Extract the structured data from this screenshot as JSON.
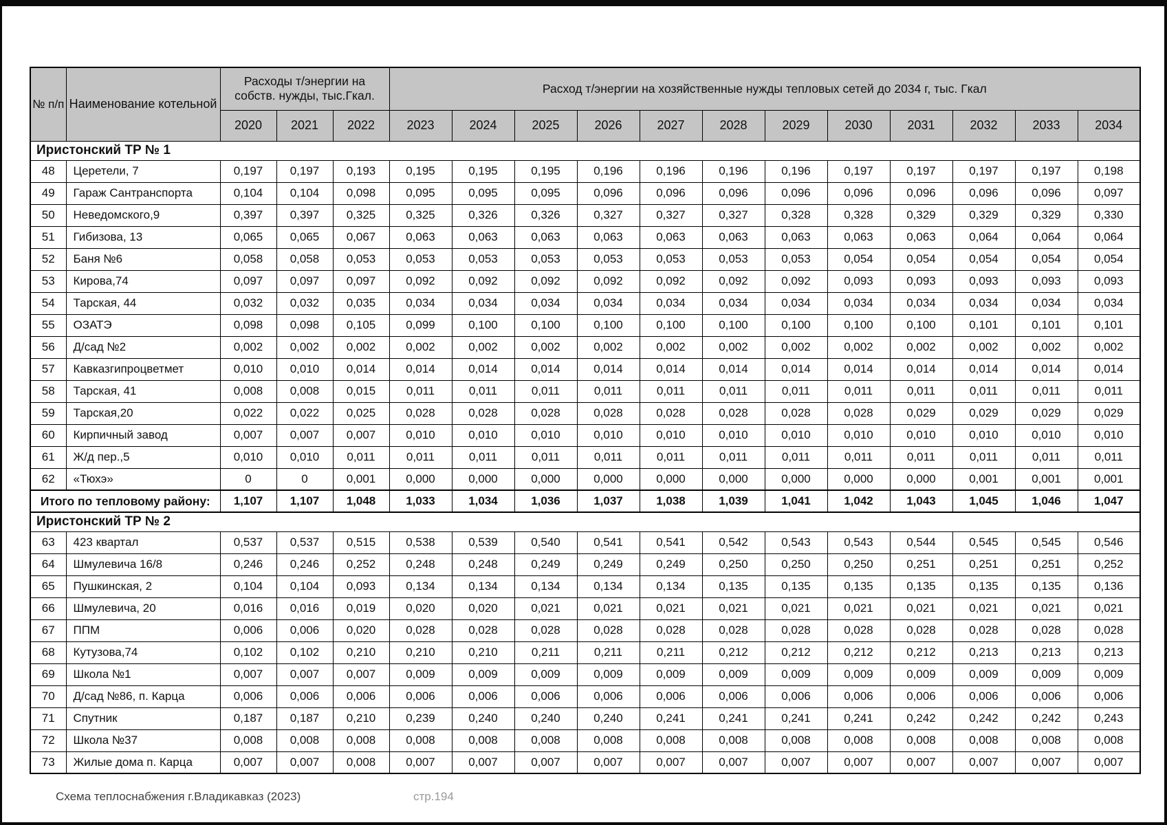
{
  "page": {
    "footer_left": "Схема теплоснабжения г.Владикавказ (2023)",
    "footer_right": "стр.194"
  },
  "table": {
    "header": {
      "col_num": "№ п/п",
      "col_name": "Наименование котельной",
      "group_own": "Расходы т/энергии на собств. нужды, тыс.Гкал.",
      "group_network": "Расход т/энергии на хозяйственные нужды тепловых сетей до 2034 г, тыс. Гкал",
      "years": [
        "2020",
        "2021",
        "2022",
        "2023",
        "2024",
        "2025",
        "2026",
        "2027",
        "2028",
        "2029",
        "2030",
        "2031",
        "2032",
        "2033",
        "2034"
      ]
    },
    "sections": [
      {
        "title": "Иристонский ТР № 1",
        "rows": [
          {
            "num": "48",
            "name": "Церетели, 7",
            "values": [
              "0,197",
              "0,197",
              "0,193",
              "0,195",
              "0,195",
              "0,195",
              "0,196",
              "0,196",
              "0,196",
              "0,196",
              "0,197",
              "0,197",
              "0,197",
              "0,197",
              "0,198"
            ]
          },
          {
            "num": "49",
            "name": "Гараж Сантранспорта",
            "values": [
              "0,104",
              "0,104",
              "0,098",
              "0,095",
              "0,095",
              "0,095",
              "0,096",
              "0,096",
              "0,096",
              "0,096",
              "0,096",
              "0,096",
              "0,096",
              "0,096",
              "0,097"
            ]
          },
          {
            "num": "50",
            "name": "Неведомского,9",
            "values": [
              "0,397",
              "0,397",
              "0,325",
              "0,325",
              "0,326",
              "0,326",
              "0,327",
              "0,327",
              "0,327",
              "0,328",
              "0,328",
              "0,329",
              "0,329",
              "0,329",
              "0,330"
            ]
          },
          {
            "num": "51",
            "name": "Гибизова, 13",
            "values": [
              "0,065",
              "0,065",
              "0,067",
              "0,063",
              "0,063",
              "0,063",
              "0,063",
              "0,063",
              "0,063",
              "0,063",
              "0,063",
              "0,063",
              "0,064",
              "0,064",
              "0,064"
            ]
          },
          {
            "num": "52",
            "name": "Баня №6",
            "values": [
              "0,058",
              "0,058",
              "0,053",
              "0,053",
              "0,053",
              "0,053",
              "0,053",
              "0,053",
              "0,053",
              "0,053",
              "0,054",
              "0,054",
              "0,054",
              "0,054",
              "0,054"
            ]
          },
          {
            "num": "53",
            "name": "Кирова,74",
            "values": [
              "0,097",
              "0,097",
              "0,097",
              "0,092",
              "0,092",
              "0,092",
              "0,092",
              "0,092",
              "0,092",
              "0,092",
              "0,093",
              "0,093",
              "0,093",
              "0,093",
              "0,093"
            ]
          },
          {
            "num": "54",
            "name": "Тарская, 44",
            "values": [
              "0,032",
              "0,032",
              "0,035",
              "0,034",
              "0,034",
              "0,034",
              "0,034",
              "0,034",
              "0,034",
              "0,034",
              "0,034",
              "0,034",
              "0,034",
              "0,034",
              "0,034"
            ]
          },
          {
            "num": "55",
            "name": "ОЗАТЭ",
            "values": [
              "0,098",
              "0,098",
              "0,105",
              "0,099",
              "0,100",
              "0,100",
              "0,100",
              "0,100",
              "0,100",
              "0,100",
              "0,100",
              "0,100",
              "0,101",
              "0,101",
              "0,101"
            ]
          },
          {
            "num": "56",
            "name": "Д/сад №2",
            "values": [
              "0,002",
              "0,002",
              "0,002",
              "0,002",
              "0,002",
              "0,002",
              "0,002",
              "0,002",
              "0,002",
              "0,002",
              "0,002",
              "0,002",
              "0,002",
              "0,002",
              "0,002"
            ]
          },
          {
            "num": "57",
            "name": "Кавказгипроцветмет",
            "values": [
              "0,010",
              "0,010",
              "0,014",
              "0,014",
              "0,014",
              "0,014",
              "0,014",
              "0,014",
              "0,014",
              "0,014",
              "0,014",
              "0,014",
              "0,014",
              "0,014",
              "0,014"
            ]
          },
          {
            "num": "58",
            "name": "Тарская, 41",
            "values": [
              "0,008",
              "0,008",
              "0,015",
              "0,011",
              "0,011",
              "0,011",
              "0,011",
              "0,011",
              "0,011",
              "0,011",
              "0,011",
              "0,011",
              "0,011",
              "0,011",
              "0,011"
            ]
          },
          {
            "num": "59",
            "name": "Тарская,20",
            "values": [
              "0,022",
              "0,022",
              "0,025",
              "0,028",
              "0,028",
              "0,028",
              "0,028",
              "0,028",
              "0,028",
              "0,028",
              "0,028",
              "0,029",
              "0,029",
              "0,029",
              "0,029"
            ]
          },
          {
            "num": "60",
            "name": "Кирпичный завод",
            "values": [
              "0,007",
              "0,007",
              "0,007",
              "0,010",
              "0,010",
              "0,010",
              "0,010",
              "0,010",
              "0,010",
              "0,010",
              "0,010",
              "0,010",
              "0,010",
              "0,010",
              "0,010"
            ]
          },
          {
            "num": "61",
            "name": "Ж/д пер.,5",
            "values": [
              "0,010",
              "0,010",
              "0,011",
              "0,011",
              "0,011",
              "0,011",
              "0,011",
              "0,011",
              "0,011",
              "0,011",
              "0,011",
              "0,011",
              "0,011",
              "0,011",
              "0,011"
            ]
          },
          {
            "num": "62",
            "name": "«Тюхэ»",
            "values": [
              "0",
              "0",
              "0,001",
              "0,000",
              "0,000",
              "0,000",
              "0,000",
              "0,000",
              "0,000",
              "0,000",
              "0,000",
              "0,000",
              "0,001",
              "0,001",
              "0,001"
            ]
          }
        ],
        "total": {
          "label": "Итого по тепловому району:",
          "values": [
            "1,107",
            "1,107",
            "1,048",
            "1,033",
            "1,034",
            "1,036",
            "1,037",
            "1,038",
            "1,039",
            "1,041",
            "1,042",
            "1,043",
            "1,045",
            "1,046",
            "1,047"
          ]
        }
      },
      {
        "title": "Иристонский ТР № 2",
        "rows": [
          {
            "num": "63",
            "name": "423 квартал",
            "values": [
              "0,537",
              "0,537",
              "0,515",
              "0,538",
              "0,539",
              "0,540",
              "0,541",
              "0,541",
              "0,542",
              "0,543",
              "0,543",
              "0,544",
              "0,545",
              "0,545",
              "0,546"
            ]
          },
          {
            "num": "64",
            "name": "Шмулевича 16/8",
            "values": [
              "0,246",
              "0,246",
              "0,252",
              "0,248",
              "0,248",
              "0,249",
              "0,249",
              "0,249",
              "0,250",
              "0,250",
              "0,250",
              "0,251",
              "0,251",
              "0,251",
              "0,252"
            ]
          },
          {
            "num": "65",
            "name": "Пушкинская, 2",
            "values": [
              "0,104",
              "0,104",
              "0,093",
              "0,134",
              "0,134",
              "0,134",
              "0,134",
              "0,134",
              "0,135",
              "0,135",
              "0,135",
              "0,135",
              "0,135",
              "0,135",
              "0,136"
            ]
          },
          {
            "num": "66",
            "name": "Шмулевича, 20",
            "values": [
              "0,016",
              "0,016",
              "0,019",
              "0,020",
              "0,020",
              "0,021",
              "0,021",
              "0,021",
              "0,021",
              "0,021",
              "0,021",
              "0,021",
              "0,021",
              "0,021",
              "0,021"
            ]
          },
          {
            "num": "67",
            "name": "ППМ",
            "values": [
              "0,006",
              "0,006",
              "0,020",
              "0,028",
              "0,028",
              "0,028",
              "0,028",
              "0,028",
              "0,028",
              "0,028",
              "0,028",
              "0,028",
              "0,028",
              "0,028",
              "0,028"
            ]
          },
          {
            "num": "68",
            "name": "Кутузова,74",
            "values": [
              "0,102",
              "0,102",
              "0,210",
              "0,210",
              "0,210",
              "0,211",
              "0,211",
              "0,211",
              "0,212",
              "0,212",
              "0,212",
              "0,212",
              "0,213",
              "0,213",
              "0,213"
            ]
          },
          {
            "num": "69",
            "name": "Школа №1",
            "values": [
              "0,007",
              "0,007",
              "0,007",
              "0,009",
              "0,009",
              "0,009",
              "0,009",
              "0,009",
              "0,009",
              "0,009",
              "0,009",
              "0,009",
              "0,009",
              "0,009",
              "0,009"
            ]
          },
          {
            "num": "70",
            "name": "Д/сад №86, п. Карца",
            "values": [
              "0,006",
              "0,006",
              "0,006",
              "0,006",
              "0,006",
              "0,006",
              "0,006",
              "0,006",
              "0,006",
              "0,006",
              "0,006",
              "0,006",
              "0,006",
              "0,006",
              "0,006"
            ]
          },
          {
            "num": "71",
            "name": "Спутник",
            "values": [
              "0,187",
              "0,187",
              "0,210",
              "0,239",
              "0,240",
              "0,240",
              "0,240",
              "0,241",
              "0,241",
              "0,241",
              "0,241",
              "0,242",
              "0,242",
              "0,242",
              "0,243"
            ]
          },
          {
            "num": "72",
            "name": "Школа №37",
            "values": [
              "0,008",
              "0,008",
              "0,008",
              "0,008",
              "0,008",
              "0,008",
              "0,008",
              "0,008",
              "0,008",
              "0,008",
              "0,008",
              "0,008",
              "0,008",
              "0,008",
              "0,008"
            ]
          },
          {
            "num": "73",
            "name": "Жилые дома п. Карца",
            "values": [
              "0,007",
              "0,007",
              "0,008",
              "0,007",
              "0,007",
              "0,007",
              "0,007",
              "0,007",
              "0,007",
              "0,007",
              "0,007",
              "0,007",
              "0,007",
              "0,007",
              "0,007"
            ]
          }
        ]
      }
    ]
  }
}
